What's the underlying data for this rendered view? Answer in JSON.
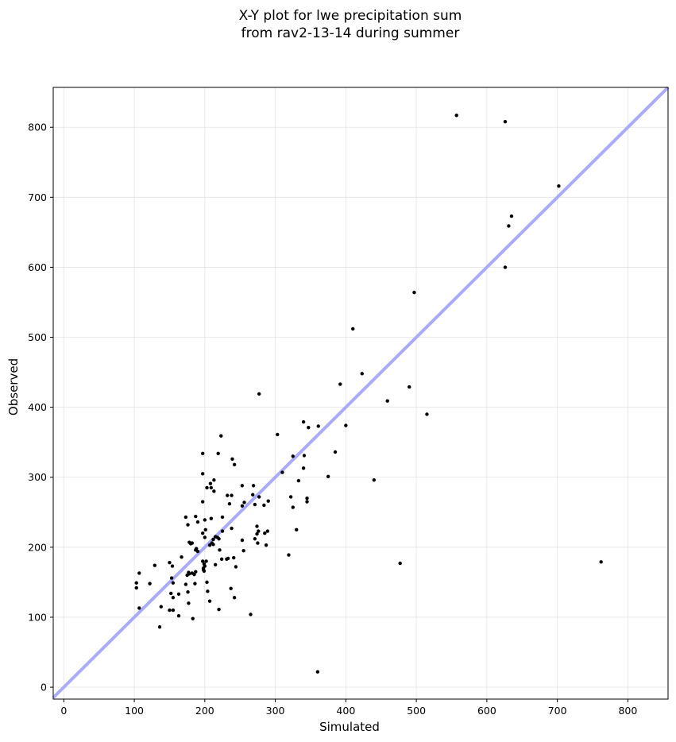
{
  "chart_data": {
    "type": "scatter",
    "title": "X-Y plot for lwe precipitation sum\nfrom rav2-13-14 during summer",
    "xlabel": "Simulated",
    "ylabel": "Observed",
    "xlim": [
      -15,
      857
    ],
    "ylim": [
      -17,
      857
    ],
    "xticks": [
      0,
      100,
      200,
      300,
      400,
      500,
      600,
      700,
      800
    ],
    "yticks": [
      0,
      100,
      200,
      300,
      400,
      500,
      600,
      700,
      800
    ],
    "grid": true,
    "reference_line": {
      "type": "y=x",
      "color": "#aaaaff"
    },
    "marker_color": "#000000",
    "points": [
      [
        557,
        817
      ],
      [
        626,
        808
      ],
      [
        702,
        716
      ],
      [
        635,
        673
      ],
      [
        631,
        659
      ],
      [
        626,
        600
      ],
      [
        497,
        564
      ],
      [
        410,
        512
      ],
      [
        423,
        448
      ],
      [
        392,
        433
      ],
      [
        490,
        429
      ],
      [
        459,
        409
      ],
      [
        515,
        390
      ],
      [
        400,
        374
      ],
      [
        277,
        419
      ],
      [
        303,
        361
      ],
      [
        223,
        359
      ],
      [
        340,
        379
      ],
      [
        347,
        371
      ],
      [
        361,
        373
      ],
      [
        385,
        336
      ],
      [
        325,
        330
      ],
      [
        341,
        331
      ],
      [
        219,
        334
      ],
      [
        197,
        334
      ],
      [
        239,
        326
      ],
      [
        242,
        318
      ],
      [
        340,
        313
      ],
      [
        310,
        307
      ],
      [
        375,
        301
      ],
      [
        440,
        296
      ],
      [
        333,
        295
      ],
      [
        197,
        305
      ],
      [
        213,
        296
      ],
      [
        208,
        291
      ],
      [
        203,
        285
      ],
      [
        209,
        285
      ],
      [
        213,
        280
      ],
      [
        253,
        288
      ],
      [
        269,
        288
      ],
      [
        232,
        274
      ],
      [
        238,
        274
      ],
      [
        268,
        275
      ],
      [
        277,
        272
      ],
      [
        322,
        272
      ],
      [
        345,
        270
      ],
      [
        345,
        265
      ],
      [
        290,
        266
      ],
      [
        256,
        264
      ],
      [
        253,
        259
      ],
      [
        235,
        262
      ],
      [
        271,
        261
      ],
      [
        284,
        260
      ],
      [
        325,
        257
      ],
      [
        197,
        265
      ],
      [
        225,
        243
      ],
      [
        187,
        244
      ],
      [
        173,
        243
      ],
      [
        209,
        241
      ],
      [
        200,
        239
      ],
      [
        190,
        236
      ],
      [
        176,
        232
      ],
      [
        238,
        227
      ],
      [
        330,
        225
      ],
      [
        274,
        230
      ],
      [
        289,
        223
      ],
      [
        276,
        223
      ],
      [
        274,
        219
      ],
      [
        285,
        220
      ],
      [
        201,
        225
      ],
      [
        197,
        220
      ],
      [
        200,
        214
      ],
      [
        215,
        215
      ],
      [
        218,
        214
      ],
      [
        220,
        212
      ],
      [
        212,
        211
      ],
      [
        210,
        206
      ],
      [
        212,
        204
      ],
      [
        207,
        203
      ],
      [
        225,
        223
      ],
      [
        178,
        207
      ],
      [
        182,
        206
      ],
      [
        180,
        205
      ],
      [
        188,
        198
      ],
      [
        187,
        196
      ],
      [
        190,
        194
      ],
      [
        221,
        196
      ],
      [
        255,
        195
      ],
      [
        271,
        212
      ],
      [
        275,
        206
      ],
      [
        287,
        203
      ],
      [
        253,
        210
      ],
      [
        319,
        189
      ],
      [
        224,
        183
      ],
      [
        233,
        184
      ],
      [
        241,
        185
      ],
      [
        231,
        183
      ],
      [
        197,
        180
      ],
      [
        202,
        180
      ],
      [
        199,
        176
      ],
      [
        198,
        170
      ],
      [
        198,
        168
      ],
      [
        199,
        166
      ],
      [
        200,
        173
      ],
      [
        215,
        175
      ],
      [
        244,
        172
      ],
      [
        167,
        186
      ],
      [
        177,
        164
      ],
      [
        178,
        162
      ],
      [
        175,
        160
      ],
      [
        187,
        165
      ],
      [
        182,
        163
      ],
      [
        185,
        161
      ],
      [
        150,
        178
      ],
      [
        154,
        173
      ],
      [
        129,
        174
      ],
      [
        122,
        148
      ],
      [
        103,
        149
      ],
      [
        103,
        142
      ],
      [
        107,
        163
      ],
      [
        153,
        156
      ],
      [
        155,
        149
      ],
      [
        173,
        147
      ],
      [
        186,
        148
      ],
      [
        176,
        136
      ],
      [
        163,
        133
      ],
      [
        152,
        134
      ],
      [
        155,
        128
      ],
      [
        203,
        150
      ],
      [
        204,
        137
      ],
      [
        237,
        141
      ],
      [
        242,
        128
      ],
      [
        207,
        123
      ],
      [
        177,
        120
      ],
      [
        107,
        113
      ],
      [
        138,
        115
      ],
      [
        155,
        110
      ],
      [
        150,
        110
      ],
      [
        220,
        111
      ],
      [
        163,
        102
      ],
      [
        183,
        98
      ],
      [
        265,
        104
      ],
      [
        136,
        86
      ],
      [
        477,
        177
      ],
      [
        762,
        179
      ],
      [
        360,
        22
      ]
    ]
  }
}
